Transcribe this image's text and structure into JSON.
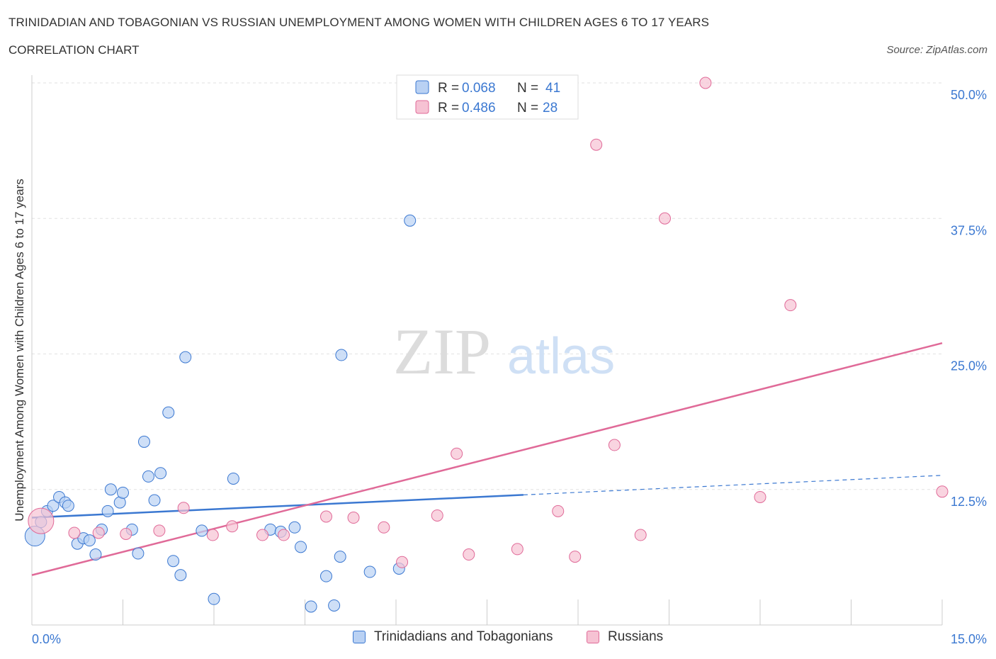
{
  "title": "TRINIDADIAN AND TOBAGONIAN VS RUSSIAN UNEMPLOYMENT AMONG WOMEN WITH CHILDREN AGES 6 TO 17 YEARS",
  "subtitle": "CORRELATION CHART",
  "source": "Source: ZipAtlas.com",
  "watermark": {
    "zip": "ZIP",
    "atlas": "atlas"
  },
  "colors": {
    "blue": "#3b78d1",
    "blue_fill": "#b9d1f3",
    "pink": "#e06a98",
    "pink_fill": "#f6c2d3",
    "axis_label": "#3b78d1"
  },
  "legend": {
    "rows": [
      {
        "r_label": "R = ",
        "r_value": "0.068",
        "n_label": "N = ",
        "n_value": "41"
      },
      {
        "r_label": "R = ",
        "r_value": "0.486",
        "n_label": "N = ",
        "n_value": "28"
      }
    ]
  },
  "chart_data": {
    "type": "scatter",
    "title": "TRINIDADIAN AND TOBAGONIAN VS RUSSIAN UNEMPLOYMENT AMONG WOMEN WITH CHILDREN AGES 6 TO 17 YEARS",
    "xlabel": "",
    "ylabel": "Unemployment Among Women with Children Ages 6 to 17 years",
    "xlim": [
      0,
      15
    ],
    "ylim": [
      0,
      50
    ],
    "x_tick_labels": [
      "0.0%",
      "15.0%"
    ],
    "y_ticks": [
      12.5,
      25.0,
      37.5,
      50.0
    ],
    "y_tick_labels": [
      "12.5%",
      "25.0%",
      "37.5%",
      "50.0%"
    ],
    "grid": true,
    "legend_position": "top-center",
    "series": [
      {
        "name": "Trinidadians and Tobagonians",
        "color": "#3b78d1",
        "points": [
          [
            0.05,
            8.2
          ],
          [
            0.15,
            9.5
          ],
          [
            0.25,
            10.5
          ],
          [
            0.35,
            11.0
          ],
          [
            0.45,
            11.8
          ],
          [
            0.55,
            11.3
          ],
          [
            0.6,
            11.0
          ],
          [
            0.75,
            7.5
          ],
          [
            0.85,
            8.0
          ],
          [
            0.95,
            7.8
          ],
          [
            1.05,
            6.5
          ],
          [
            1.15,
            8.8
          ],
          [
            1.25,
            10.5
          ],
          [
            1.3,
            12.5
          ],
          [
            1.45,
            11.3
          ],
          [
            1.5,
            12.2
          ],
          [
            1.65,
            8.8
          ],
          [
            1.75,
            6.6
          ],
          [
            1.85,
            16.9
          ],
          [
            1.92,
            13.7
          ],
          [
            2.02,
            11.5
          ],
          [
            2.12,
            14.0
          ],
          [
            2.25,
            19.6
          ],
          [
            2.33,
            5.9
          ],
          [
            2.45,
            4.6
          ],
          [
            2.53,
            24.7
          ],
          [
            2.8,
            8.7
          ],
          [
            3.0,
            2.4
          ],
          [
            3.32,
            13.5
          ],
          [
            3.93,
            8.8
          ],
          [
            4.1,
            8.6
          ],
          [
            4.33,
            9.0
          ],
          [
            4.43,
            7.2
          ],
          [
            4.6,
            1.7
          ],
          [
            4.85,
            4.5
          ],
          [
            4.98,
            1.8
          ],
          [
            5.08,
            6.3
          ],
          [
            5.1,
            24.9
          ],
          [
            5.57,
            4.9
          ],
          [
            6.05,
            5.2
          ],
          [
            6.23,
            37.3
          ]
        ]
      },
      {
        "name": "Russians",
        "color": "#e06a98",
        "points": [
          [
            0.15,
            9.6
          ],
          [
            0.7,
            8.5
          ],
          [
            1.1,
            8.5
          ],
          [
            1.55,
            8.4
          ],
          [
            2.1,
            8.7
          ],
          [
            2.5,
            10.8
          ],
          [
            2.98,
            8.3
          ],
          [
            3.3,
            9.1
          ],
          [
            3.8,
            8.3
          ],
          [
            4.15,
            8.3
          ],
          [
            4.85,
            10.0
          ],
          [
            5.3,
            9.9
          ],
          [
            5.8,
            9.0
          ],
          [
            6.1,
            5.8
          ],
          [
            6.68,
            10.1
          ],
          [
            7.0,
            15.8
          ],
          [
            7.2,
            6.5
          ],
          [
            8.0,
            7.0
          ],
          [
            8.67,
            10.5
          ],
          [
            8.95,
            6.3
          ],
          [
            9.3,
            44.3
          ],
          [
            9.6,
            16.6
          ],
          [
            10.03,
            8.3
          ],
          [
            10.43,
            37.5
          ],
          [
            11.1,
            50.0
          ],
          [
            12.0,
            11.8
          ],
          [
            12.5,
            29.5
          ],
          [
            15.0,
            12.3
          ]
        ]
      }
    ],
    "trendlines": [
      {
        "series": "Trinidadians and Tobagonians",
        "x0": 0,
        "y0": 9.9,
        "x1": 8.1,
        "y1": 12.0,
        "dashed_to_x": 15.0,
        "dashed_to_y": 13.8
      },
      {
        "series": "Russians",
        "x0": 0,
        "y0": 4.6,
        "x1": 15.0,
        "y1": 26.0
      }
    ]
  }
}
